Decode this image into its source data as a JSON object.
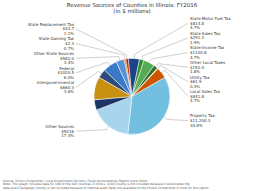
{
  "chart_data": {
    "type": "pie",
    "title": "Revenue Sources of Counties in Illinois: FY2016\n(in $ millions)",
    "categories": [
      "Intergovernmental\n$660.3\n3.8%",
      "Federal\n$1020.5\n6.0%",
      "Other State Sources\n$582.0\n3.4%",
      "State Gaming Tax\n$2.3\n0.7%",
      "State Replacement Tax\n$43.7\n1.1%",
      "State Motor Fuel Tax\n$814.8\n4.7%",
      "State Sales Tax\n$291.3\n1.9%",
      "State Income Tax\n$1100.8\n4.7%",
      "Other Local Taxes\n$152.0\n1.8%",
      "Utility Tax\n$61.9\n0.3%",
      "Local Sales Tax\n$841.8\n4.7%",
      "Property Tax\n$11,200.3\n34.8%",
      "Other Sources\n$5416\n17.3%",
      null,
      null
    ],
    "values": [
      3.8,
      6.0,
      3.4,
      0.7,
      1.1,
      4.7,
      1.9,
      4.7,
      1.8,
      0.3,
      4.7,
      34.8,
      17.3,
      4.3,
      9.7
    ],
    "colors": [
      "#2e4a7a",
      "#3a78c9",
      "#5592d6",
      "#b8860b",
      "#cc2200",
      "#1e4488",
      "#2e8b2e",
      "#55aa55",
      "#2d6e2d",
      "#e8c020",
      "#cc5500",
      "#72bfe0",
      "#a8d4ee",
      "#1a3566",
      "#c89010"
    ],
    "annotations": [
      "Source: Illinois Comptroller, Local Government Division, Fiscal Accountability Report (June 2018)\nNote: This graph includes data for 100 of the 102 counties in Illinois. Cook County is not included because it would skew the\ndata and Champaign County is not included because of internal audit flaws not available to the Illinois Comptroller in time for this report."
    ]
  }
}
